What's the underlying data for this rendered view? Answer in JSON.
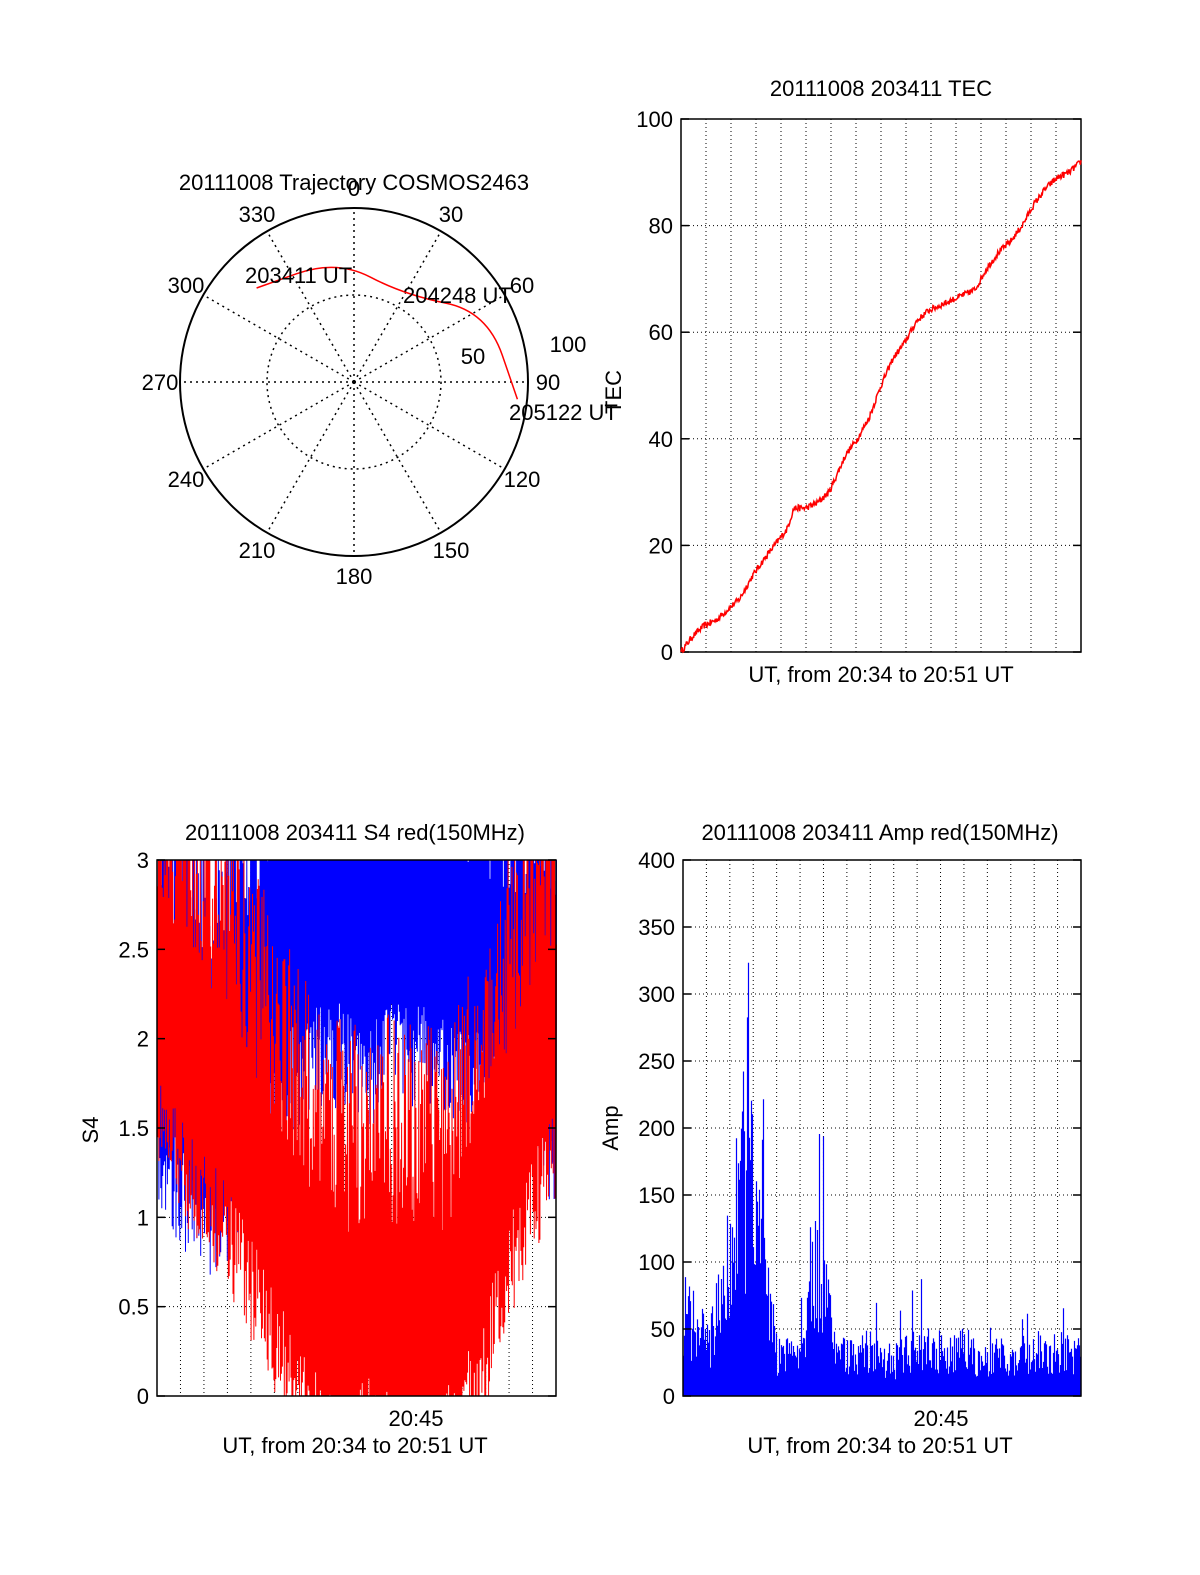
{
  "colors": {
    "red": "#ff0000",
    "blue": "#0000ff",
    "axis": "#000000",
    "grid": "#000000"
  },
  "chart_data": [
    {
      "type": "polar",
      "title": "20111008 Trajectory COSMOS2463",
      "angle_tick_labels": [
        "0",
        "30",
        "60",
        "90",
        "120",
        "150",
        "180",
        "210",
        "240",
        "270",
        "300",
        "330"
      ],
      "radial_tick_labels": [
        "50",
        "100"
      ],
      "grid": true,
      "series": [
        {
          "color": "red",
          "points": [
            {
              "azimuth": 314,
              "elevation": 20,
              "label": "203411 UT"
            },
            {
              "azimuth": 352,
              "elevation": 26,
              "label": null
            },
            {
              "azimuth": 30,
              "elevation": 38,
              "label": "204248 UT"
            },
            {
              "azimuth": 62,
              "elevation": 12,
              "label": null
            },
            {
              "azimuth": 96,
              "elevation": 5,
              "label": "205122 UT"
            }
          ]
        }
      ],
      "labels": [
        "203411 UT",
        "204248 UT",
        "205122 UT"
      ]
    },
    {
      "type": "line",
      "title": "20111008 203411 TEC",
      "xlabel": "UT, from 20:34 to 20:51 UT",
      "ylabel": "TEC",
      "ylim": [
        0,
        100
      ],
      "yticks": [
        "0",
        "20",
        "40",
        "60",
        "80",
        "100"
      ],
      "xlim": [
        0,
        17
      ],
      "grid": true,
      "series": [
        {
          "color": "red",
          "x": [
            0,
            0.5,
            1,
            1.5,
            2,
            2.5,
            3,
            3.3,
            3.8,
            4.5,
            4.8,
            5.3,
            5.8,
            6.3,
            7,
            7.5,
            8,
            8.5,
            9,
            9.5,
            10,
            10.5,
            11,
            11.5,
            12,
            12.5,
            13,
            13.5,
            14,
            14.5,
            15,
            15.5,
            16,
            16.5,
            17
          ],
          "values": [
            0,
            3,
            5,
            6,
            8,
            10,
            14,
            16,
            19,
            23,
            27,
            27,
            28,
            30,
            37,
            40,
            44,
            50,
            55,
            58,
            62,
            64,
            65,
            66,
            67,
            68,
            72,
            75,
            77,
            80,
            84,
            87,
            89,
            90,
            92
          ]
        }
      ]
    },
    {
      "type": "line",
      "title": "20111008 203411 S4 red(150MHz)",
      "xlabel": "UT, from 20:34 to 20:51 UT",
      "ylabel": "S4",
      "ylim": [
        0,
        3
      ],
      "yticks": [
        "0",
        "0.5",
        "1",
        "1.5",
        "2",
        "2.5",
        "3"
      ],
      "xlim": [
        0,
        17
      ],
      "xtick_labels": [
        {
          "x": 11,
          "label": "20:45"
        }
      ],
      "grid": true,
      "series": [
        {
          "color": "blue",
          "x": [
            0,
            1,
            2,
            3,
            4,
            5,
            6,
            7,
            8,
            9,
            10,
            11,
            12,
            13,
            14,
            15,
            16,
            17
          ],
          "values": [
            2.3,
            2.0,
            1.8,
            1.9,
            2.3,
            2.6,
            2.7,
            2.8,
            2.8,
            2.7,
            2.8,
            2.8,
            2.8,
            2.7,
            2.6,
            2.5,
            2.4,
            2.2
          ]
        },
        {
          "color": "red",
          "x": [
            0,
            1,
            2,
            3,
            4,
            5,
            6,
            7,
            8,
            9,
            10,
            11,
            12,
            13,
            14,
            15,
            16,
            17
          ],
          "values": [
            2.4,
            2.2,
            2.0,
            1.8,
            1.5,
            1.2,
            0.9,
            0.7,
            0.6,
            0.7,
            0.65,
            0.6,
            0.6,
            0.8,
            1.1,
            1.6,
            2.0,
            2.2
          ]
        }
      ]
    },
    {
      "type": "bar",
      "title": "20111008 203411 Amp red(150MHz)",
      "xlabel": "UT, from 20:34 to 20:51 UT",
      "ylabel": "Amp",
      "ylim": [
        0,
        400
      ],
      "yticks": [
        "0",
        "50",
        "100",
        "150",
        "200",
        "250",
        "300",
        "350",
        "400"
      ],
      "xlim": [
        0,
        17
      ],
      "xtick_labels": [
        {
          "x": 11,
          "label": "20:45"
        }
      ],
      "grid": true,
      "series": [
        {
          "color": "blue",
          "x": [
            0,
            0.5,
            1,
            1.5,
            2,
            2.5,
            3,
            3.5,
            4,
            4.5,
            5,
            5.5,
            6,
            6.5,
            7,
            7.5,
            8,
            8.5,
            9,
            9.5,
            10,
            10.5,
            11,
            11.5,
            12,
            12.5,
            13,
            13.5,
            14,
            14.5,
            15,
            15.5,
            16,
            16.5,
            17
          ],
          "values": [
            70,
            60,
            45,
            70,
            150,
            190,
            180,
            140,
            35,
            40,
            45,
            110,
            100,
            30,
            40,
            35,
            40,
            35,
            30,
            35,
            40,
            45,
            40,
            35,
            40,
            35,
            30,
            35,
            30,
            35,
            40,
            35,
            40,
            35,
            35
          ]
        }
      ]
    }
  ]
}
